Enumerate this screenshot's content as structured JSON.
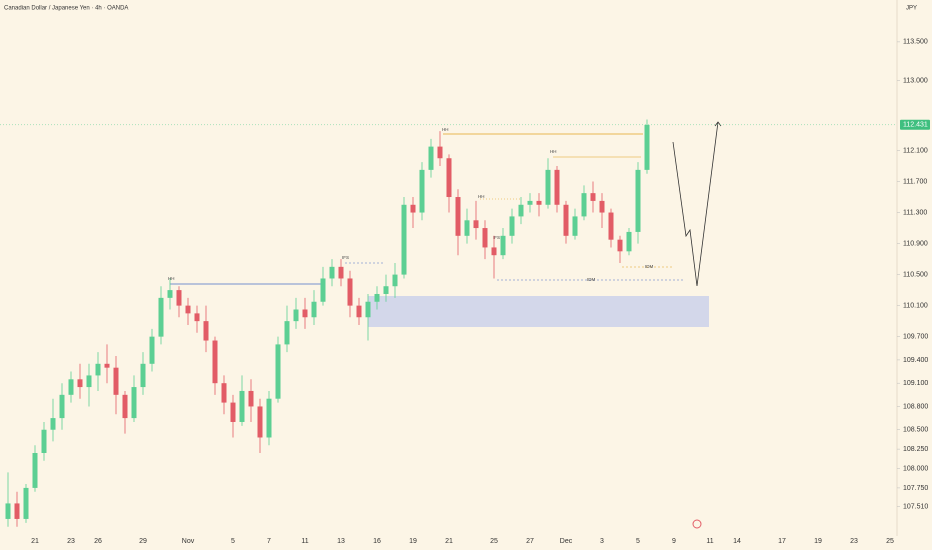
{
  "chart_data": {
    "type": "candlestick",
    "title": "Canadian Dollar / Japanese Yen · 4h · OANDA",
    "currency": "JPY",
    "up_color": "#5ccf93",
    "down_color": "#e25c66",
    "categories": [
      null,
      null,
      null,
      "21",
      null,
      null,
      null,
      "23",
      null,
      null,
      "26",
      null,
      null,
      null,
      null,
      "29",
      null,
      null,
      null,
      null,
      "Nov",
      null,
      null,
      null,
      null,
      "5",
      null,
      null,
      null,
      "7",
      null,
      null,
      null,
      "11",
      null,
      null,
      null,
      "13",
      null,
      null,
      null,
      "16",
      null,
      null,
      null,
      "19",
      null,
      null,
      null,
      "21",
      null,
      null,
      null,
      null,
      "25",
      null,
      null,
      null,
      "27",
      null,
      null,
      null,
      "Dec",
      null,
      null,
      null,
      "3",
      null,
      null,
      null,
      "5",
      null,
      null,
      null,
      "9",
      null,
      null,
      null,
      "11",
      null,
      null,
      "14",
      null,
      null,
      null,
      null,
      "17",
      null,
      null,
      null,
      "19",
      null,
      null,
      null,
      "23",
      null,
      null,
      null,
      "25",
      null
    ],
    "open": [
      107.35,
      107.55,
      107.35,
      107.75,
      108.2,
      108.5,
      108.65,
      108.95,
      109.15,
      109.05,
      109.2,
      109.35,
      109.3,
      108.95,
      108.65,
      109.05,
      109.35,
      109.7,
      110.2,
      110.3,
      110.1,
      110.0,
      109.9,
      109.65,
      109.1,
      108.85,
      108.6,
      109.0,
      108.8,
      108.4,
      108.9,
      109.6,
      109.9,
      110.05,
      109.95,
      110.15,
      110.45,
      110.6,
      110.45,
      110.1,
      109.95,
      110.15,
      110.25,
      110.35,
      110.5,
      111.4,
      111.3,
      111.85,
      112.15,
      112.0,
      111.5,
      111.0,
      111.2,
      111.1,
      110.85,
      110.75,
      111.0,
      111.25,
      111.4,
      111.45,
      111.4,
      111.85,
      111.4,
      111.0,
      111.25,
      111.55,
      111.45,
      111.3,
      110.95,
      110.8,
      111.05,
      111.85,
      null,
      null,
      null,
      null,
      null,
      null,
      null,
      null,
      null,
      null,
      null,
      null,
      null,
      null,
      null,
      null,
      null,
      null,
      null,
      null,
      null,
      null,
      null,
      null,
      null,
      null,
      null,
      null
    ],
    "high": [
      107.95,
      107.7,
      107.8,
      108.3,
      108.6,
      108.9,
      109.1,
      109.25,
      109.35,
      109.35,
      109.5,
      109.6,
      109.45,
      109.0,
      109.2,
      109.5,
      109.8,
      110.35,
      110.45,
      110.35,
      110.2,
      110.1,
      110.1,
      109.7,
      109.2,
      108.95,
      109.2,
      109.15,
      108.9,
      109.0,
      109.7,
      110.1,
      110.2,
      110.2,
      110.3,
      110.6,
      110.7,
      110.7,
      110.55,
      110.2,
      110.25,
      110.35,
      110.5,
      110.65,
      111.5,
      111.5,
      111.95,
      112.25,
      112.35,
      112.05,
      111.6,
      111.35,
      111.45,
      111.2,
      111.0,
      111.1,
      111.35,
      111.5,
      111.55,
      111.55,
      112.0,
      111.9,
      111.45,
      111.35,
      111.65,
      111.7,
      111.55,
      111.35,
      111.0,
      111.1,
      111.95,
      112.5,
      null,
      null,
      null,
      null,
      null,
      null,
      null,
      null,
      null,
      null,
      null,
      null,
      null,
      null,
      null,
      null,
      null,
      null,
      null,
      null,
      null,
      null,
      null,
      null,
      null,
      null,
      null,
      null
    ],
    "low": [
      107.25,
      107.25,
      107.3,
      107.7,
      108.1,
      108.35,
      108.5,
      108.85,
      108.9,
      108.8,
      109.0,
      109.1,
      108.7,
      108.45,
      108.6,
      108.95,
      109.25,
      109.6,
      110.05,
      109.95,
      109.85,
      109.75,
      109.5,
      108.95,
      108.7,
      108.4,
      108.55,
      108.6,
      108.2,
      108.3,
      108.85,
      109.5,
      109.8,
      109.8,
      109.85,
      110.1,
      110.35,
      110.35,
      109.95,
      109.85,
      109.65,
      110.05,
      110.15,
      110.2,
      110.45,
      111.1,
      111.2,
      111.75,
      111.9,
      111.3,
      110.75,
      110.9,
      110.95,
      110.7,
      110.45,
      110.7,
      110.9,
      111.15,
      111.3,
      111.25,
      111.35,
      111.3,
      110.9,
      110.95,
      111.2,
      111.3,
      111.1,
      110.85,
      110.65,
      110.75,
      110.9,
      111.8,
      null,
      null,
      null,
      null,
      null,
      null,
      null,
      null,
      null,
      null,
      null,
      null,
      null,
      null,
      null,
      null,
      null,
      null,
      null,
      null,
      null,
      null,
      null,
      null,
      null,
      null,
      null,
      null
    ],
    "close": [
      107.55,
      107.35,
      107.75,
      108.2,
      108.5,
      108.65,
      108.95,
      109.15,
      109.05,
      109.2,
      109.35,
      109.3,
      108.95,
      108.65,
      109.05,
      109.35,
      109.7,
      110.2,
      110.3,
      110.1,
      110.0,
      109.9,
      109.65,
      109.1,
      108.85,
      108.6,
      109.0,
      108.8,
      108.4,
      108.9,
      109.6,
      109.9,
      110.05,
      109.95,
      110.15,
      110.45,
      110.6,
      110.45,
      110.1,
      109.95,
      110.15,
      110.25,
      110.35,
      110.5,
      111.4,
      111.3,
      111.85,
      112.15,
      112.0,
      111.5,
      111.0,
      111.2,
      111.1,
      110.85,
      110.75,
      111.0,
      111.25,
      111.4,
      111.45,
      111.4,
      111.85,
      111.4,
      111.0,
      111.25,
      111.55,
      111.45,
      111.3,
      110.95,
      110.8,
      111.05,
      111.85,
      112.43,
      null,
      null,
      null,
      null,
      null,
      null,
      null,
      null,
      null,
      null,
      null,
      null,
      null,
      null,
      null,
      null,
      null,
      null,
      null,
      null,
      null,
      null,
      null,
      null,
      null,
      null,
      null,
      null
    ],
    "last_price": 112.431,
    "ylim": [
      107.13,
      114.04
    ],
    "yticks": [
      {
        "value": 113.5,
        "label": "113.500"
      },
      {
        "value": 113,
        "label": "113.000"
      },
      {
        "value": 112.1,
        "label": "112.100"
      },
      {
        "value": 111.7,
        "label": "111.700"
      },
      {
        "value": 111.3,
        "label": "111.300"
      },
      {
        "value": 110.9,
        "label": "110.900"
      },
      {
        "value": 110.5,
        "label": "110.500"
      },
      {
        "value": 110.1,
        "label": "110.100"
      },
      {
        "value": 109.7,
        "label": "109.700"
      },
      {
        "value": 109.4,
        "label": "109.400"
      },
      {
        "value": 109.1,
        "label": "109.100"
      },
      {
        "value": 108.8,
        "label": "108.800"
      },
      {
        "value": 108.5,
        "label": "108.500"
      },
      {
        "value": 108.25,
        "label": "108.250"
      },
      {
        "value": 108,
        "label": "108.000"
      },
      {
        "value": 107.75,
        "label": "107.750"
      },
      {
        "value": 107.51,
        "label": "107.510"
      }
    ],
    "annotations": [
      "HH",
      "IFS",
      "HH",
      "HH",
      "IFS",
      "HH",
      "IDM",
      "IDM"
    ]
  }
}
